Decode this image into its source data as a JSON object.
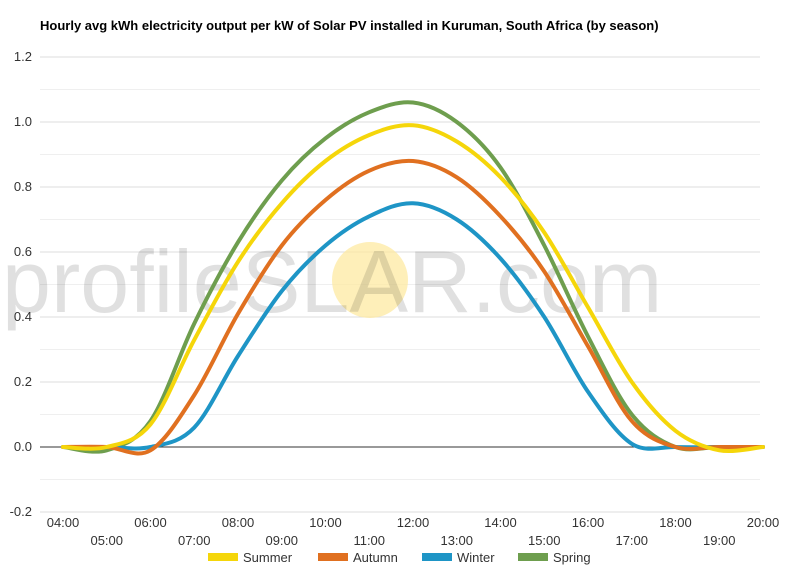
{
  "chart_data": {
    "type": "line",
    "title": "Hourly avg kWh electricity output per kW of Solar PV installed in Kuruman, South Africa (by season)",
    "xlabel": "",
    "ylabel": "",
    "x": [
      "04:00",
      "05:00",
      "06:00",
      "07:00",
      "08:00",
      "09:00",
      "10:00",
      "11:00",
      "12:00",
      "13:00",
      "14:00",
      "15:00",
      "16:00",
      "17:00",
      "18:00",
      "19:00",
      "20:00"
    ],
    "ylim": [
      -0.2,
      1.2
    ],
    "yticks": [
      -0.2,
      0.0,
      0.2,
      0.4,
      0.6,
      0.8,
      1.0,
      1.2
    ],
    "ytick_labels": [
      "-0.2",
      "0.0",
      "0.2",
      "0.4",
      "0.6",
      "0.8",
      "1.0",
      "1.2"
    ],
    "grid": true,
    "legend_position": "bottom",
    "series": [
      {
        "name": "Summer",
        "color": "#f5d60a",
        "values": [
          0,
          0,
          0.07,
          0.33,
          0.57,
          0.75,
          0.88,
          0.96,
          0.99,
          0.94,
          0.83,
          0.66,
          0.43,
          0.2,
          0.05,
          -0.01,
          0
        ]
      },
      {
        "name": "Autumn",
        "color": "#e07020",
        "values": [
          0,
          0,
          -0.01,
          0.16,
          0.41,
          0.62,
          0.76,
          0.85,
          0.88,
          0.83,
          0.71,
          0.54,
          0.31,
          0.08,
          0,
          0,
          0
        ]
      },
      {
        "name": "Winter",
        "color": "#1e95c6",
        "values": [
          0,
          0,
          0,
          0.06,
          0.28,
          0.48,
          0.62,
          0.71,
          0.75,
          0.7,
          0.58,
          0.4,
          0.17,
          0.01,
          0,
          0,
          0
        ]
      },
      {
        "name": "Spring",
        "color": "#6e9e4e",
        "values": [
          0,
          -0.01,
          0.08,
          0.38,
          0.63,
          0.82,
          0.95,
          1.03,
          1.06,
          1.0,
          0.86,
          0.62,
          0.34,
          0.1,
          0,
          0,
          0
        ]
      }
    ]
  },
  "watermark": {
    "part1": "profile",
    "part2": "S",
    "part3": "LAR.com",
    "sun_color": "#fde9a2"
  }
}
